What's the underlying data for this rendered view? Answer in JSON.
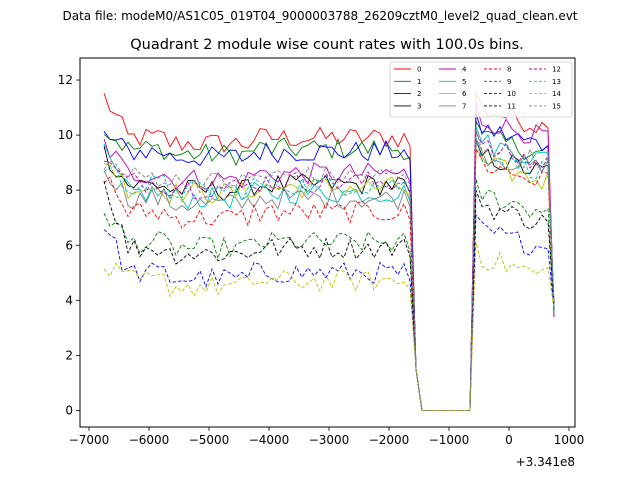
{
  "chart_data": {
    "type": "line",
    "suptitle": "Data file: modeM0/AS1C05_019T04_9000003788_26209cztM0_level2_quad_clean.evt",
    "title": "Quadrant 2 module wise count rates with 100.0s bins.",
    "xlabel": "",
    "ylabel": "",
    "x_offset_label": "+3.341e8",
    "xlim": [
      -7150,
      1100
    ],
    "ylim": [
      -0.6,
      12.8
    ],
    "x_ticks": [
      -7000,
      -6000,
      -5000,
      -4000,
      -3000,
      -2000,
      -1000,
      0,
      1000
    ],
    "x_tick_labels": [
      "−7000",
      "−6000",
      "−5000",
      "−4000",
      "−3000",
      "−2000",
      "−1000",
      "0",
      "1000"
    ],
    "y_ticks": [
      0,
      2,
      4,
      6,
      8,
      10,
      12
    ],
    "y_tick_labels": [
      "0",
      "2",
      "4",
      "6",
      "8",
      "10",
      "12"
    ],
    "grid": false,
    "legend_position": "top-right",
    "x": [
      -6750,
      -6650,
      -6550,
      -6450,
      -6350,
      -6250,
      -6150,
      -6050,
      -5950,
      -5850,
      -5750,
      -5650,
      -5550,
      -5450,
      -5350,
      -5250,
      -5150,
      -5050,
      -4950,
      -4850,
      -4750,
      -4650,
      -4550,
      -4450,
      -4350,
      -4250,
      -4150,
      -4050,
      -3950,
      -3850,
      -3750,
      -3650,
      -3550,
      -3450,
      -3350,
      -3250,
      -3150,
      -3050,
      -2950,
      -2850,
      -2750,
      -2650,
      -2550,
      -2450,
      -2350,
      -2250,
      -2150,
      -2050,
      -1950,
      -1850,
      -1750,
      -1650,
      -1550,
      -1450,
      -1350,
      -1250,
      -1150,
      -1050,
      -950,
      -850,
      -750,
      -650,
      -550,
      -450,
      -350,
      -250,
      -150,
      -50,
      50,
      150,
      250,
      350,
      450,
      550,
      650,
      750
    ],
    "series": [
      {
        "name": "0",
        "color": "#ff0000",
        "dash": "solid",
        "base": 9.9,
        "start": 11.4,
        "post": 11.0
      },
      {
        "name": "1",
        "color": "#008000",
        "dash": "solid",
        "base": 9.5,
        "start": 10.2,
        "post": 10.0
      },
      {
        "name": "2",
        "color": "#0000ff",
        "dash": "solid",
        "base": 9.4,
        "start": 10.0,
        "post": 10.3
      },
      {
        "name": "3",
        "color": "#000000",
        "dash": "solid",
        "base": 8.2,
        "start": 9.4,
        "post": 9.3
      },
      {
        "name": "4",
        "color": "#bf00bf",
        "dash": "solid",
        "base": 8.6,
        "start": 9.7,
        "post": 10.6
      },
      {
        "name": "5",
        "color": "#00bfbf",
        "dash": "solid",
        "base": 7.9,
        "start": 9.3,
        "post": 9.8
      },
      {
        "name": "6",
        "color": "#bfbf00",
        "dash": "solid",
        "base": 8.1,
        "start": 9.2,
        "post": 9.0
      },
      {
        "name": "7",
        "color": "#808080",
        "dash": "solid",
        "base": 7.7,
        "start": 8.9,
        "post": 9.4
      },
      {
        "name": "8",
        "color": "#ff0000",
        "dash": "dashed",
        "base": 7.2,
        "start": 8.6,
        "post": 9.0
      },
      {
        "name": "9",
        "color": "#008000",
        "dash": "dashed",
        "base": 6.1,
        "start": 7.3,
        "post": 7.9
      },
      {
        "name": "10",
        "color": "#0000ff",
        "dash": "dashed",
        "base": 5.0,
        "start": 6.8,
        "post": 6.6
      },
      {
        "name": "11",
        "color": "#000000",
        "dash": "dashed",
        "base": 5.9,
        "start": 8.3,
        "post": 7.5
      },
      {
        "name": "12",
        "color": "#bf00bf",
        "dash": "dashed",
        "base": 8.3,
        "start": 9.0,
        "post": 9.6
      },
      {
        "name": "13",
        "color": "#00bfbf",
        "dash": "dashed",
        "base": 8.2,
        "start": 8.9,
        "post": 9.4
      },
      {
        "name": "14",
        "color": "#bfbf00",
        "dash": "dashed",
        "base": 4.7,
        "start": 5.2,
        "post": 5.6
      },
      {
        "name": "15",
        "color": "#808080",
        "dash": "dashed",
        "base": 8.5,
        "start": 9.1,
        "post": 9.7
      }
    ],
    "gap": {
      "x_start": -1450,
      "x_end": -650,
      "value": 0
    }
  }
}
